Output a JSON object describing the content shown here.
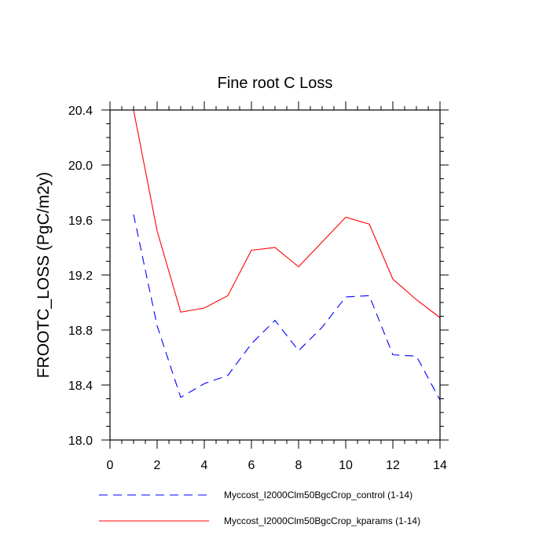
{
  "chart_data": {
    "type": "line",
    "title": "Fine root C Loss",
    "xlabel": "",
    "ylabel": "FROOTC_LOSS  (PgC/m2y)",
    "xlim": [
      0,
      14
    ],
    "ylim": [
      18.0,
      20.4
    ],
    "x_ticks": [
      "0",
      "2",
      "4",
      "6",
      "8",
      "10",
      "12",
      "14"
    ],
    "y_ticks": [
      "18.0",
      "18.4",
      "18.8",
      "19.2",
      "19.6",
      "20.0",
      "20.4"
    ],
    "grid": false,
    "legend_position": "bottom",
    "series": [
      {
        "name": "Myccost_I2000Clm50BgcCrop_control (1-14)",
        "color": "#0000ff",
        "style": "dashed",
        "x": [
          1,
          2,
          3,
          4,
          5,
          6,
          7,
          8,
          9,
          10,
          11,
          12,
          13,
          14
        ],
        "values": [
          19.64,
          18.83,
          18.31,
          18.41,
          18.47,
          18.7,
          18.87,
          18.65,
          18.82,
          19.04,
          19.05,
          18.62,
          18.61,
          18.29
        ]
      },
      {
        "name": "Myccost_I2000Clm50BgcCrop_kparams (1-14)",
        "color": "#ff0000",
        "style": "solid",
        "x": [
          1,
          2,
          3,
          4,
          5,
          6,
          7,
          8,
          9,
          10,
          11,
          12,
          13,
          14
        ],
        "values": [
          20.4,
          19.52,
          18.93,
          18.96,
          19.05,
          19.38,
          19.4,
          19.26,
          19.44,
          19.62,
          19.57,
          19.17,
          19.02,
          18.89
        ]
      }
    ]
  }
}
